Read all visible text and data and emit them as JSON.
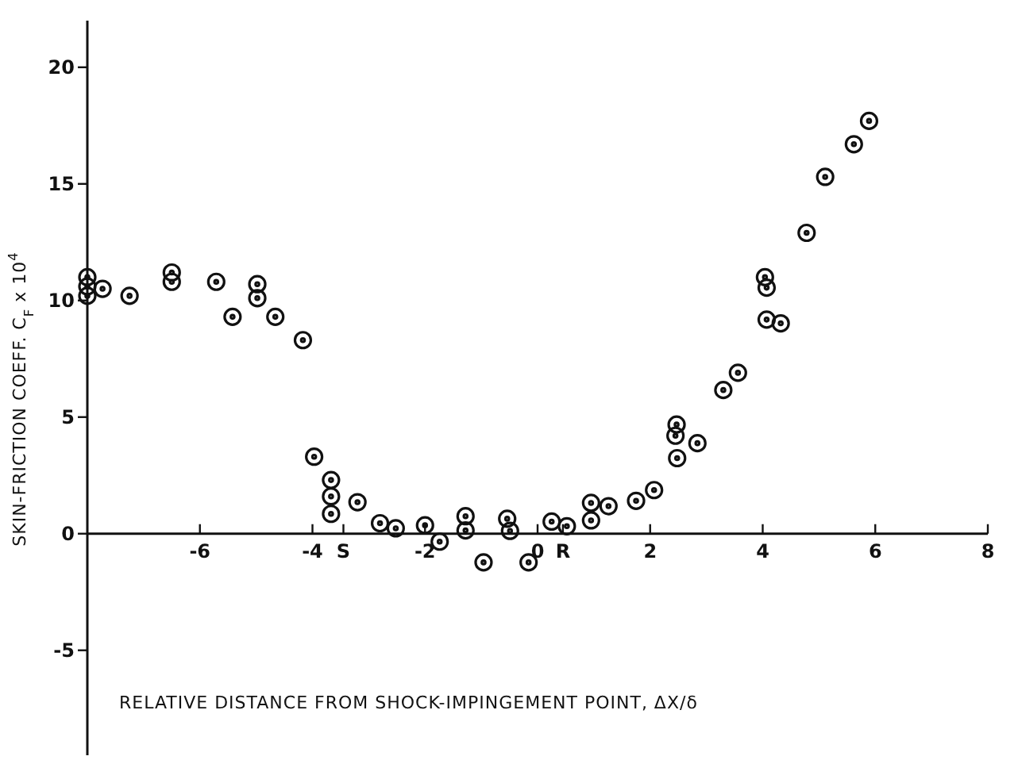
{
  "chart_data": {
    "type": "scatter",
    "xlabel": "RELATIVE DISTANCE FROM SHOCK-IMPINGEMENT POINT, ΔX/δ",
    "ylabel": "SKIN-FRICTION COEFF.  C$_{F}$ x 10$^{4}$",
    "xlim": [
      -8,
      8
    ],
    "ylim": [
      -9.5,
      22
    ],
    "xticks": [
      -6,
      -4,
      {
        "value": -3.45,
        "label": "S"
      },
      -2,
      0,
      {
        "value": 0.45,
        "label": "R"
      },
      2,
      4,
      6,
      8
    ],
    "yticks": [
      -5,
      0,
      5,
      10,
      15,
      20
    ],
    "marker": "circle",
    "grid": false,
    "series": [
      {
        "color": "#111111",
        "x": [
          -8,
          -8,
          -8,
          -7.73,
          -7.25,
          -6.5,
          -6.5,
          -5.71,
          -5.42,
          -4.98,
          -4.98,
          -4.66,
          -4.17,
          -3.97,
          -3.67,
          -3.67,
          -3.67,
          -3.2,
          -2.8,
          -2.52,
          -2.0,
          -1.74,
          -1.28,
          -1.28,
          -0.96,
          -0.54,
          -0.49,
          -0.16,
          0.25,
          0.52,
          0.95,
          0.95,
          1.26,
          1.75,
          2.07,
          2.47,
          2.45,
          2.48,
          2.84,
          3.3,
          3.56,
          4.07,
          4.32,
          4.04,
          4.07,
          4.78,
          5.11,
          5.62,
          5.89
        ],
        "values": [
          11.0,
          10.6,
          10.2,
          10.5,
          10.2,
          11.2,
          10.8,
          10.8,
          9.3,
          10.7,
          10.1,
          9.3,
          8.3,
          3.3,
          2.3,
          1.6,
          0.85,
          1.35,
          0.45,
          0.23,
          0.36,
          -0.34,
          0.75,
          0.14,
          -1.23,
          0.64,
          0.12,
          -1.23,
          0.52,
          0.32,
          1.32,
          0.57,
          1.18,
          1.41,
          1.87,
          4.68,
          4.2,
          3.24,
          3.88,
          6.16,
          6.9,
          9.18,
          9.02,
          11.0,
          10.55,
          12.9,
          15.3,
          16.7,
          17.7
        ]
      }
    ]
  }
}
